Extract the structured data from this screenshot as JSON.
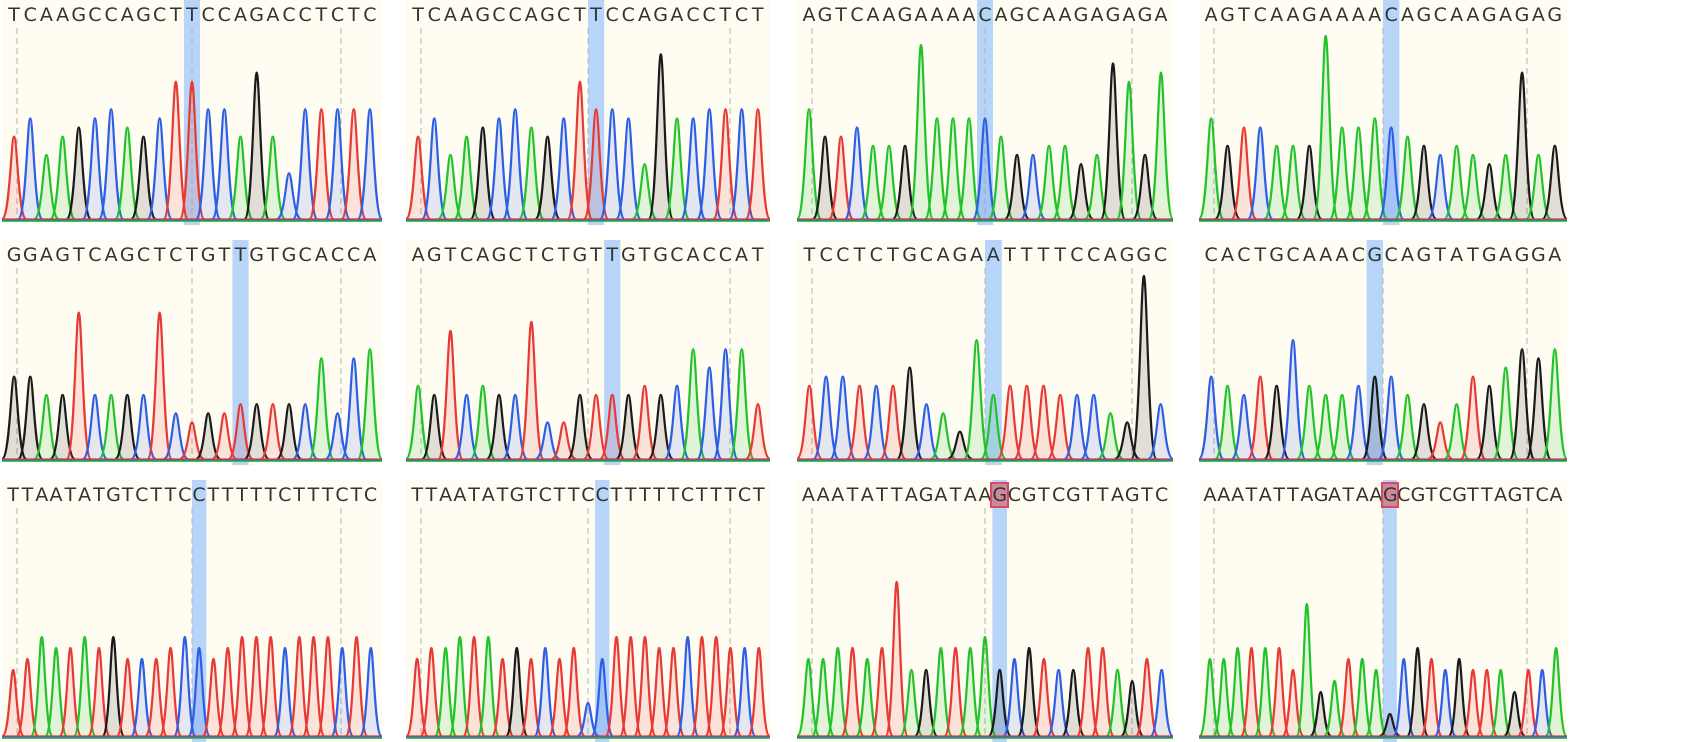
{
  "colors": {
    "A": "#22c32a",
    "C": "#2d5ee6",
    "G": "#1a1a1a",
    "T": "#e63a35",
    "highlight": "#aacdfa",
    "background": "#fffcf2",
    "dashed": "#b4b4b4"
  },
  "chart_data": [
    {
      "type": "chromatogram",
      "row": 0,
      "col": 0,
      "sequence": "TCAAGCCAGCTTCCAGACCTCTC",
      "highlight_index": 11,
      "boxed_index": null,
      "peak_heights": [
        0.45,
        0.55,
        0.35,
        0.45,
        0.5,
        0.55,
        0.6,
        0.5,
        0.45,
        0.55,
        0.75,
        0.75,
        0.6,
        0.6,
        0.45,
        0.8,
        0.45,
        0.25,
        0.6,
        0.6,
        0.6,
        0.6,
        0.6
      ]
    },
    {
      "type": "chromatogram",
      "row": 0,
      "col": 1,
      "sequence": "TCAAGCCAGCTTCCAGACCTCT",
      "highlight_index": 11,
      "boxed_index": null,
      "peak_heights": [
        0.45,
        0.55,
        0.35,
        0.45,
        0.5,
        0.55,
        0.6,
        0.5,
        0.45,
        0.55,
        0.75,
        0.6,
        0.6,
        0.55,
        0.3,
        0.9,
        0.55,
        0.55,
        0.6,
        0.6,
        0.6,
        0.6
      ]
    },
    {
      "type": "chromatogram",
      "row": 0,
      "col": 2,
      "sequence": "AGTCAAGAAAACAGCAAGAGAGA",
      "highlight_index": 11,
      "boxed_index": null,
      "peak_heights": [
        0.6,
        0.45,
        0.45,
        0.5,
        0.4,
        0.4,
        0.4,
        0.95,
        0.55,
        0.55,
        0.55,
        0.55,
        0.45,
        0.35,
        0.35,
        0.4,
        0.4,
        0.3,
        0.35,
        0.85,
        0.75,
        0.35,
        0.8
      ]
    },
    {
      "type": "chromatogram",
      "row": 0,
      "col": 3,
      "sequence": "AGTCAAGAAAACAGCAAGAGAG",
      "highlight_index": 11,
      "boxed_index": null,
      "peak_heights": [
        0.55,
        0.4,
        0.5,
        0.5,
        0.4,
        0.4,
        0.4,
        1.0,
        0.5,
        0.5,
        0.55,
        0.5,
        0.45,
        0.4,
        0.35,
        0.4,
        0.35,
        0.3,
        0.35,
        0.8,
        0.35,
        0.4
      ]
    },
    {
      "type": "chromatogram",
      "row": 1,
      "col": 0,
      "sequence": "GGAGTCAGCTCTGTTGTGCACCA",
      "highlight_index": 14,
      "boxed_index": null,
      "peak_heights": [
        0.45,
        0.45,
        0.35,
        0.35,
        0.8,
        0.35,
        0.35,
        0.35,
        0.35,
        0.8,
        0.25,
        0.2,
        0.25,
        0.25,
        0.3,
        0.3,
        0.3,
        0.3,
        0.3,
        0.55,
        0.25,
        0.55,
        0.6
      ]
    },
    {
      "type": "chromatogram",
      "row": 1,
      "col": 1,
      "sequence": "AGTCAGCTCTGTTGTGCACCAT",
      "highlight_index": 12,
      "boxed_index": null,
      "peak_heights": [
        0.4,
        0.35,
        0.7,
        0.35,
        0.4,
        0.35,
        0.35,
        0.75,
        0.2,
        0.2,
        0.35,
        0.35,
        0.35,
        0.35,
        0.4,
        0.35,
        0.4,
        0.6,
        0.5,
        0.6,
        0.6,
        0.3
      ]
    },
    {
      "type": "chromatogram",
      "row": 1,
      "col": 2,
      "sequence": "TCCTCTGCAGAATTTTCCAGGC",
      "highlight_index": 11,
      "boxed_index": null,
      "peak_heights": [
        0.4,
        0.45,
        0.45,
        0.4,
        0.4,
        0.4,
        0.5,
        0.3,
        0.25,
        0.15,
        0.65,
        0.35,
        0.4,
        0.4,
        0.4,
        0.35,
        0.35,
        0.35,
        0.25,
        0.2,
        1.0,
        0.3
      ]
    },
    {
      "type": "chromatogram",
      "row": 1,
      "col": 3,
      "sequence": "CACTGCAAACGCAGTATGAGGA",
      "highlight_index": 10,
      "boxed_index": null,
      "peak_heights": [
        0.45,
        0.4,
        0.35,
        0.45,
        0.4,
        0.65,
        0.4,
        0.35,
        0.35,
        0.4,
        0.45,
        0.45,
        0.35,
        0.3,
        0.2,
        0.3,
        0.45,
        0.4,
        0.5,
        0.6,
        0.55,
        0.6
      ]
    },
    {
      "type": "chromatogram",
      "row": 2,
      "col": 0,
      "sequence": "TTAATATGTCTTCCTTTTTCTTTCTC",
      "highlight_index": 13,
      "boxed_index": null,
      "peak_heights": [
        0.3,
        0.35,
        0.45,
        0.4,
        0.4,
        0.45,
        0.4,
        0.45,
        0.35,
        0.35,
        0.35,
        0.4,
        0.45,
        0.4,
        0.35,
        0.4,
        0.45,
        0.45,
        0.45,
        0.4,
        0.45,
        0.45,
        0.45,
        0.4,
        0.45,
        0.4
      ]
    },
    {
      "type": "chromatogram",
      "row": 2,
      "col": 1,
      "sequence": "TTAATATGTCTTCCTTTTTCTTTCT",
      "highlight_index": 13,
      "boxed_index": null,
      "peak_heights": [
        0.35,
        0.4,
        0.4,
        0.45,
        0.45,
        0.45,
        0.35,
        0.4,
        0.35,
        0.4,
        0.35,
        0.4,
        0.15,
        0.35,
        0.45,
        0.45,
        0.45,
        0.4,
        0.4,
        0.45,
        0.45,
        0.45,
        0.4,
        0.4,
        0.4
      ]
    },
    {
      "type": "chromatogram",
      "row": 2,
      "col": 2,
      "sequence": "AAATATTAGATAAGCGTCGTTAGTC",
      "highlight_index": 13,
      "boxed_index": 13,
      "peak_heights": [
        0.35,
        0.35,
        0.4,
        0.4,
        0.35,
        0.4,
        0.7,
        0.3,
        0.3,
        0.4,
        0.4,
        0.4,
        0.45,
        0.3,
        0.35,
        0.4,
        0.35,
        0.3,
        0.3,
        0.4,
        0.4,
        0.3,
        0.25,
        0.35,
        0.3
      ]
    },
    {
      "type": "chromatogram",
      "row": 2,
      "col": 3,
      "sequence": "AAATATTAGATAAGCGTCGTTAGTCA",
      "highlight_index": 13,
      "boxed_index": 13,
      "peak_heights": [
        0.35,
        0.35,
        0.4,
        0.4,
        0.4,
        0.4,
        0.3,
        0.6,
        0.2,
        0.25,
        0.35,
        0.35,
        0.3,
        0.1,
        0.35,
        0.4,
        0.35,
        0.3,
        0.35,
        0.3,
        0.3,
        0.3,
        0.2,
        0.3,
        0.3,
        0.4
      ]
    }
  ]
}
